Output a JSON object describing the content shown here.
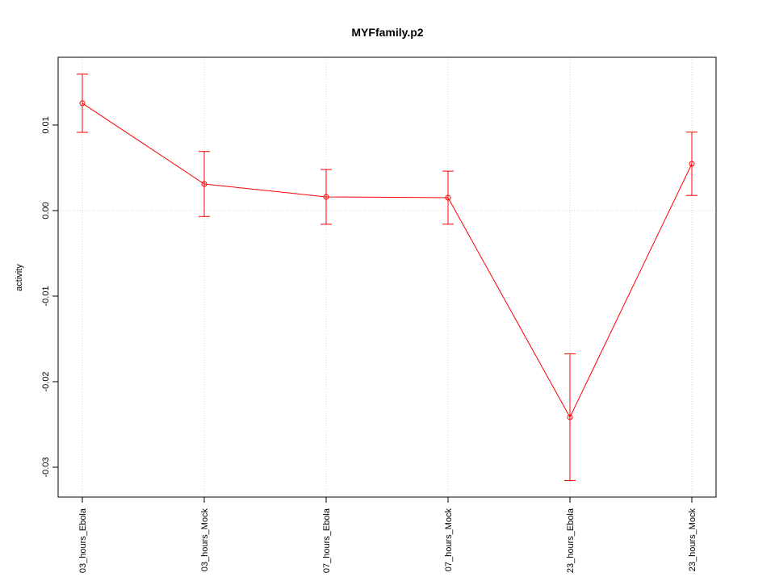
{
  "chart_data": {
    "type": "line",
    "title": "MYFfamily.p2",
    "y_label": "activity",
    "categories": [
      "03_hours_Ebola",
      "03_hours_Mock",
      "07_hours_Ebola",
      "07_hours_Mock",
      "23_hours_Ebola",
      "23_hours_Mock"
    ],
    "series": [
      {
        "name": "MYFfamily.p2",
        "color": "#ff0000",
        "values": [
          0.01255,
          0.00311,
          0.0016,
          0.00151,
          -0.02415,
          0.00547
        ],
        "errors": [
          0.0034,
          0.0038,
          0.0032,
          0.0031,
          0.0074,
          0.0037
        ]
      }
    ],
    "ylim": [
      -0.03349,
      0.01792
    ],
    "yticks": [
      -0.03,
      -0.02,
      -0.01,
      {
        "value": 0,
        "label": "0.00"
      },
      0.01
    ],
    "grid": true,
    "reference_line": 0
  }
}
